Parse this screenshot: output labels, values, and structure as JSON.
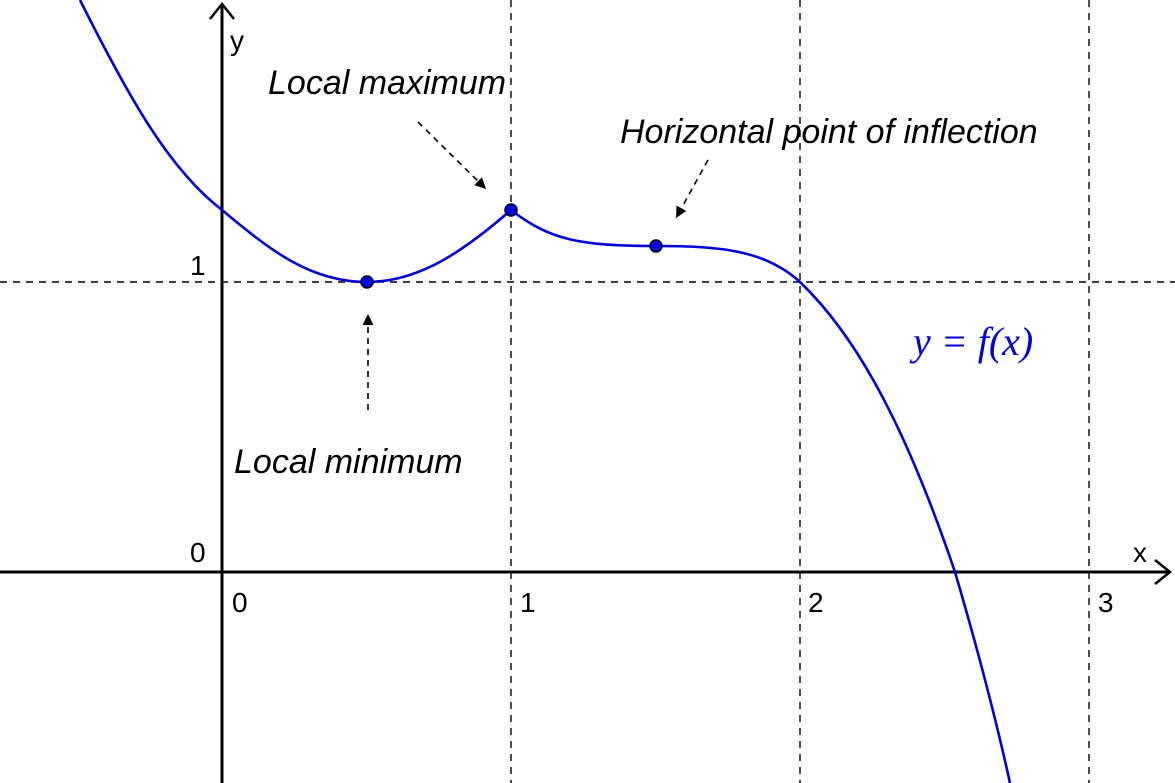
{
  "colors": {
    "curve": "#0000dd",
    "point_fill": "#0000ee",
    "axis": "#000000",
    "grid": "#000000"
  },
  "axes": {
    "x_label": "x",
    "y_label": "y",
    "origin_label": "0",
    "x_ticks": [
      "0",
      "1",
      "2",
      "3"
    ],
    "y_ticks": [
      "1"
    ]
  },
  "annotations": {
    "local_max": "Local maximum",
    "inflection": "Horizontal point of inflection",
    "local_min": "Local minimum"
  },
  "curve_label": "y = f(x)",
  "chart_data": {
    "type": "line",
    "title": "",
    "xlabel": "x",
    "ylabel": "y",
    "xlim": [
      -0.75,
      3.3
    ],
    "ylim": [
      -0.72,
      1.95
    ],
    "grid": true,
    "grid_lines": {
      "x": [
        1,
        2,
        3
      ],
      "y": [
        1
      ]
    },
    "series": [
      {
        "name": "y = f(x)",
        "x": [
          -0.5,
          -0.25,
          0,
          0.25,
          0.5,
          0.75,
          1.0,
          1.25,
          1.5,
          1.75,
          2.0,
          2.25,
          2.5,
          2.7
        ],
        "y": [
          1.88,
          1.57,
          1.25,
          1.06,
          1.0,
          1.07,
          1.25,
          1.14,
          1.12,
          1.09,
          1.0,
          0.62,
          0.0,
          -0.72
        ]
      }
    ],
    "points": [
      {
        "x": 0.5,
        "y": 1.0,
        "label": "Local minimum"
      },
      {
        "x": 1.0,
        "y": 1.25,
        "label": "Local maximum"
      },
      {
        "x": 1.5,
        "y": 1.12,
        "label": "Horizontal point of inflection"
      }
    ]
  }
}
